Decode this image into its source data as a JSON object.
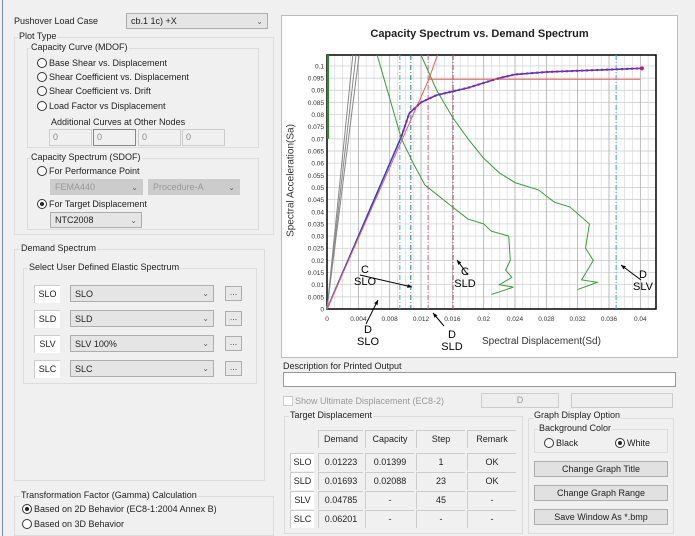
{
  "pushover": {
    "label": "Pushover Load Case",
    "value": "cb.1 1c) +X"
  },
  "plot_type": {
    "label": "Plot Type",
    "mdof": {
      "label": "Capacity Curve (MDOF)",
      "options": [
        "Base Shear vs. Displacement",
        "Shear Coefficient vs. Displacement",
        "Shear Coefficient vs. Drift",
        "Load Factor vs Displacement"
      ],
      "additional_label": "Additional Curves at Other Nodes",
      "nodes": [
        "0",
        "0",
        "0",
        "0"
      ]
    },
    "sdof": {
      "label": "Capacity Spectrum (SDOF)",
      "perf_label": "For Performance Point",
      "perf_method": "FEMA440",
      "perf_procedure": "Procedure-A",
      "target_label": "For Target Displacement",
      "target_code": "NTC2008"
    }
  },
  "demand": {
    "label": "Demand Spectrum",
    "sub_label": "Select User Defined Elastic Spectrum",
    "rows": [
      {
        "tag": "SLO",
        "value": "SLO"
      },
      {
        "tag": "SLD",
        "value": "SLD"
      },
      {
        "tag": "SLV",
        "value": "SLV 100%"
      },
      {
        "tag": "SLC",
        "value": "SLC"
      }
    ],
    "dots": "..."
  },
  "gamma": {
    "label": "Transformation Factor (Gamma) Calculation",
    "opt2d": "Based on 2D Behavior (EC8-1:2004  Annex B)",
    "opt3d": "Based on 3D Behavior"
  },
  "description": {
    "label": "Description for Printed Output",
    "value": ""
  },
  "ultimate": {
    "label": "Show Ultimate Displacement  (EC8-2)",
    "d_label": "D"
  },
  "target": {
    "label": "Target Displacement",
    "headers": [
      "Demand",
      "Capacity",
      "Step",
      "Remark"
    ],
    "rows": [
      {
        "name": "SLO",
        "cells": [
          "0.01223",
          "0.01399",
          "1",
          "OK"
        ]
      },
      {
        "name": "SLD",
        "cells": [
          "0.01693",
          "0.02088",
          "23",
          "OK"
        ]
      },
      {
        "name": "SLV",
        "cells": [
          "0.04785",
          "-",
          "45",
          "-"
        ]
      },
      {
        "name": "SLC",
        "cells": [
          "0.06201",
          "-",
          "-",
          "-"
        ]
      }
    ]
  },
  "graph_option": {
    "label": "Graph Display Option",
    "bg_label": "Background Color",
    "black": "Black",
    "white": "White",
    "btn_title": "Change Graph Title",
    "btn_range": "Change Graph Range",
    "btn_save": "Save Window As *.bmp"
  },
  "chart_data": {
    "type": "line",
    "title": "Capacity Spectrum vs. Demand Spectrum",
    "xlabel": "Spectral Displacement(Sd)",
    "ylabel": "Spectral Acceleration(Sa)",
    "xlim": [
      0,
      0.042
    ],
    "ylim": [
      0,
      0.1045
    ],
    "xticks": [
      0,
      0.004,
      0.008,
      0.012,
      0.016,
      0.02,
      0.024,
      0.028,
      0.032,
      0.036,
      0.04
    ],
    "xtick_labels": [
      "0",
      "0.004",
      "0.008",
      "0.012",
      "0.016",
      "0.02",
      "0.024",
      "0.028",
      "0.032",
      "0.036",
      "0.04"
    ],
    "yticks": [
      0,
      0.005,
      0.01,
      0.015,
      0.02,
      0.025,
      0.03,
      0.035,
      0.04,
      0.045,
      0.05,
      0.055,
      0.06,
      0.065,
      0.07,
      0.075,
      0.08,
      0.085,
      0.09,
      0.095,
      0.1
    ],
    "ytick_labels": [
      "0",
      "0.005",
      "0.01",
      "0.015",
      "0.02",
      "0.025",
      "0.03",
      "0.035",
      "0.04",
      "0.045",
      "0.05",
      "0.055",
      "0.06",
      "0.065",
      "0.07",
      "0.075",
      "0.08",
      "0.085",
      "0.09",
      "0.095",
      "0.1"
    ],
    "series": [
      {
        "name": "capacity",
        "color": "#2a3fd0",
        "points": [
          [
            0,
            0
          ],
          [
            0.001,
            0.0075
          ],
          [
            0.0095,
            0.071
          ],
          [
            0.0105,
            0.0805
          ],
          [
            0.012,
            0.085
          ],
          [
            0.014,
            0.088
          ],
          [
            0.016,
            0.0895
          ],
          [
            0.018,
            0.091
          ],
          [
            0.02,
            0.093
          ],
          [
            0.022,
            0.095
          ],
          [
            0.024,
            0.0965
          ],
          [
            0.028,
            0.0975
          ],
          [
            0.032,
            0.098
          ],
          [
            0.036,
            0.0985
          ],
          [
            0.04,
            0.099
          ]
        ]
      },
      {
        "name": "bilinear",
        "color": "#e06060",
        "points": [
          [
            0,
            0
          ],
          [
            0.013,
            0.0945
          ],
          [
            0.04,
            0.0945
          ]
        ]
      },
      {
        "name": "bilinear-ext",
        "color": "#e06060",
        "points": [
          [
            0.013,
            0.0945
          ],
          [
            0.0141,
            0.1045
          ]
        ]
      },
      {
        "name": "demand-1",
        "color": "#3a9a3a",
        "points": [
          [
            0.0064,
            0.1045
          ],
          [
            0.0095,
            0.07
          ],
          [
            0.011,
            0.06
          ],
          [
            0.0125,
            0.051
          ],
          [
            0.016,
            0.042
          ],
          [
            0.018,
            0.037
          ],
          [
            0.02,
            0.035
          ],
          [
            0.021,
            0.032
          ],
          [
            0.0232,
            0.03
          ],
          [
            0.0234,
            0.02
          ],
          [
            0.0228,
            0.016
          ],
          [
            0.0236,
            0.013
          ],
          [
            0.022,
            0.01
          ],
          [
            0.0238,
            0.009
          ],
          [
            0.021,
            0.006
          ]
        ]
      },
      {
        "name": "demand-2",
        "color": "#3a9a3a",
        "points": [
          [
            0.012,
            0.1045
          ],
          [
            0.014,
            0.09
          ],
          [
            0.016,
            0.079
          ],
          [
            0.018,
            0.07
          ],
          [
            0.02,
            0.062
          ],
          [
            0.022,
            0.056
          ],
          [
            0.024,
            0.052
          ],
          [
            0.027,
            0.049
          ],
          [
            0.029,
            0.044
          ],
          [
            0.031,
            0.042
          ],
          [
            0.0335,
            0.035
          ],
          [
            0.033,
            0.025
          ],
          [
            0.034,
            0.02
          ],
          [
            0.0325,
            0.012
          ],
          [
            0.0345,
            0.011
          ],
          [
            0.032,
            0.008
          ]
        ]
      },
      {
        "name": "elastic-a",
        "color": "#888888",
        "points": [
          [
            0,
            0
          ],
          [
            0.0033,
            0.1045
          ]
        ]
      },
      {
        "name": "elastic-b",
        "color": "#888888",
        "points": [
          [
            0,
            0
          ],
          [
            0.0037,
            0.1045
          ]
        ]
      },
      {
        "name": "elastic-c",
        "color": "#888888",
        "points": [
          [
            0,
            0
          ],
          [
            0.0041,
            0.1045
          ]
        ]
      }
    ],
    "vlines": [
      {
        "x": 0.0093,
        "color": "#4aa8c8"
      },
      {
        "x": 0.0107,
        "color": "#2a7a8a"
      },
      {
        "x": 0.0129,
        "color": "#e07090"
      },
      {
        "x": 0.0161,
        "color": "#d05070"
      },
      {
        "x": 0.0369,
        "color": "#4ab0d8"
      }
    ],
    "annotations": [
      {
        "text": "C\nSLO"
      },
      {
        "text": "D\nSLO"
      },
      {
        "text": "C\nSLD"
      },
      {
        "text": "D\nSLD"
      },
      {
        "text": "D\nSLV"
      }
    ]
  }
}
